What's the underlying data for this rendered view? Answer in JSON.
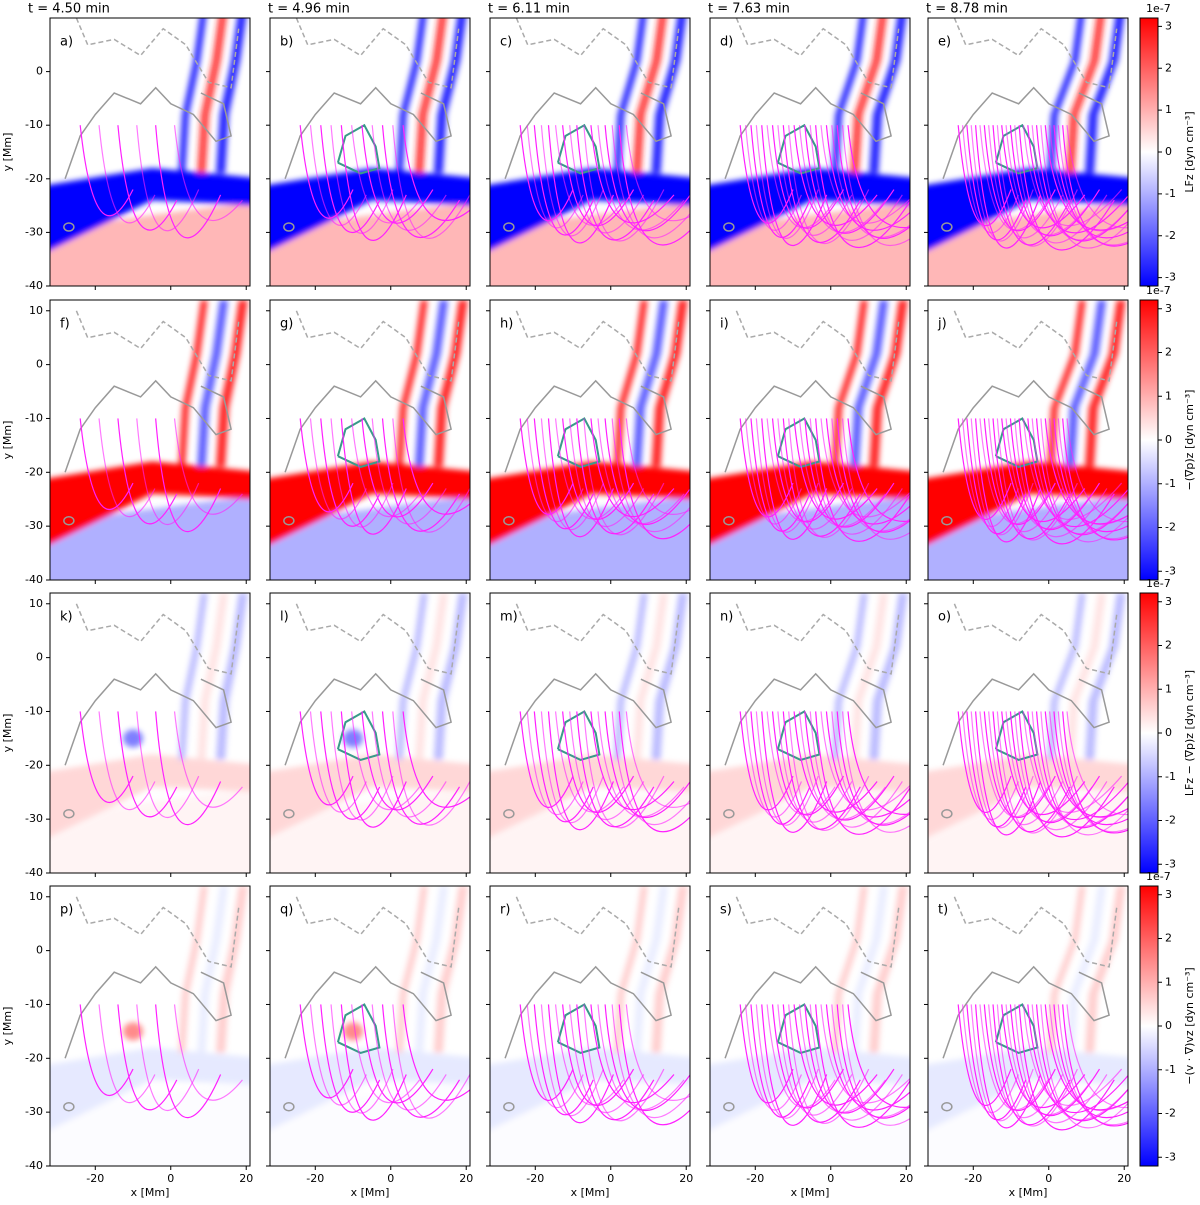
{
  "chart_data": [
    {
      "type": "heatmap",
      "label": "a)",
      "title": "t = 4.50 min",
      "ylabel": "y [Mm]",
      "xlim": [
        -32,
        21
      ],
      "ylim": [
        -40,
        10
      ],
      "xticks": [
        -20,
        0,
        20
      ],
      "yticks": [
        -40,
        -30,
        -20,
        -10,
        0
      ]
    },
    {
      "type": "heatmap",
      "label": "b)",
      "title": "t = 4.96 min",
      "xlim": [
        -32,
        21
      ],
      "ylim": [
        -40,
        10
      ],
      "xticks": [
        -20,
        0,
        20
      ],
      "yticks": [
        -40,
        -30,
        -20,
        -10,
        0
      ]
    },
    {
      "type": "heatmap",
      "label": "c)",
      "title": "t = 6.11 min",
      "xlim": [
        -32,
        21
      ],
      "ylim": [
        -40,
        10
      ],
      "xticks": [
        -20,
        0,
        20
      ],
      "yticks": [
        -40,
        -30,
        -20,
        -10,
        0
      ]
    },
    {
      "type": "heatmap",
      "label": "d)",
      "title": "t = 7.63 min",
      "xlim": [
        -32,
        21
      ],
      "ylim": [
        -40,
        10
      ],
      "xticks": [
        -20,
        0,
        20
      ],
      "yticks": [
        -40,
        -30,
        -20,
        -10,
        0
      ]
    },
    {
      "type": "heatmap",
      "label": "e)",
      "title": "t = 8.78 min",
      "xlim": [
        -32,
        21
      ],
      "ylim": [
        -40,
        10
      ],
      "xticks": [
        -20,
        0,
        20
      ],
      "yticks": [
        -40,
        -30,
        -20,
        -10,
        0
      ]
    },
    {
      "type": "heatmap",
      "label": "f)",
      "ylabel": "y [Mm]",
      "xlim": [
        -32,
        21
      ],
      "ylim": [
        -40,
        12
      ],
      "xticks": [
        -20,
        0,
        20
      ],
      "yticks": [
        -40,
        -30,
        -20,
        -10,
        0,
        10
      ]
    },
    {
      "type": "heatmap",
      "label": "g)",
      "xlim": [
        -32,
        21
      ],
      "ylim": [
        -40,
        12
      ],
      "xticks": [
        -20,
        0,
        20
      ],
      "yticks": [
        -40,
        -30,
        -20,
        -10,
        0,
        10
      ]
    },
    {
      "type": "heatmap",
      "label": "h)",
      "xlim": [
        -32,
        21
      ],
      "ylim": [
        -40,
        12
      ],
      "xticks": [
        -20,
        0,
        20
      ],
      "yticks": [
        -40,
        -30,
        -20,
        -10,
        0,
        10
      ]
    },
    {
      "type": "heatmap",
      "label": "i)",
      "xlim": [
        -32,
        21
      ],
      "ylim": [
        -40,
        12
      ],
      "xticks": [
        -20,
        0,
        20
      ],
      "yticks": [
        -40,
        -30,
        -20,
        -10,
        0,
        10
      ]
    },
    {
      "type": "heatmap",
      "label": "j)",
      "xlim": [
        -32,
        21
      ],
      "ylim": [
        -40,
        12
      ],
      "xticks": [
        -20,
        0,
        20
      ],
      "yticks": [
        -40,
        -30,
        -20,
        -10,
        0,
        10
      ]
    },
    {
      "type": "heatmap",
      "label": "k)",
      "ylabel": "y [Mm]",
      "xlim": [
        -32,
        21
      ],
      "ylim": [
        -40,
        12
      ],
      "xticks": [
        -20,
        0,
        20
      ],
      "yticks": [
        -40,
        -30,
        -20,
        -10,
        0,
        10
      ]
    },
    {
      "type": "heatmap",
      "label": "l)",
      "xlim": [
        -32,
        21
      ],
      "ylim": [
        -40,
        12
      ],
      "xticks": [
        -20,
        0,
        20
      ],
      "yticks": [
        -40,
        -30,
        -20,
        -10,
        0,
        10
      ]
    },
    {
      "type": "heatmap",
      "label": "m)",
      "xlim": [
        -32,
        21
      ],
      "ylim": [
        -40,
        12
      ],
      "xticks": [
        -20,
        0,
        20
      ],
      "yticks": [
        -40,
        -30,
        -20,
        -10,
        0,
        10
      ]
    },
    {
      "type": "heatmap",
      "label": "n)",
      "xlim": [
        -32,
        21
      ],
      "ylim": [
        -40,
        12
      ],
      "xticks": [
        -20,
        0,
        20
      ],
      "yticks": [
        -40,
        -30,
        -20,
        -10,
        0,
        10
      ]
    },
    {
      "type": "heatmap",
      "label": "o)",
      "xlim": [
        -32,
        21
      ],
      "ylim": [
        -40,
        12
      ],
      "xticks": [
        -20,
        0,
        20
      ],
      "yticks": [
        -40,
        -30,
        -20,
        -10,
        0,
        10
      ]
    },
    {
      "type": "heatmap",
      "label": "p)",
      "ylabel": "y [Mm]",
      "xlabel": "x [Mm]",
      "xlim": [
        -32,
        21
      ],
      "ylim": [
        -40,
        12
      ],
      "xticks": [
        -20,
        0,
        20
      ],
      "yticks": [
        -40,
        -30,
        -20,
        -10,
        0,
        10
      ]
    },
    {
      "type": "heatmap",
      "label": "q)",
      "xlabel": "x [Mm]",
      "xlim": [
        -32,
        21
      ],
      "ylim": [
        -40,
        12
      ],
      "xticks": [
        -20,
        0,
        20
      ],
      "yticks": [
        -40,
        -30,
        -20,
        -10,
        0,
        10
      ]
    },
    {
      "type": "heatmap",
      "label": "r)",
      "xlabel": "x [Mm]",
      "xlim": [
        -32,
        21
      ],
      "ylim": [
        -40,
        12
      ],
      "xticks": [
        -20,
        0,
        20
      ],
      "yticks": [
        -40,
        -30,
        -20,
        -10,
        0,
        10
      ]
    },
    {
      "type": "heatmap",
      "label": "s)",
      "xlabel": "x [Mm]",
      "xlim": [
        -32,
        21
      ],
      "ylim": [
        -40,
        12
      ],
      "xticks": [
        -20,
        0,
        20
      ],
      "yticks": [
        -40,
        -30,
        -20,
        -10,
        0,
        10
      ]
    },
    {
      "type": "heatmap",
      "label": "t)",
      "xlabel": "x [Mm]",
      "xlim": [
        -32,
        21
      ],
      "ylim": [
        -40,
        12
      ],
      "xticks": [
        -20,
        0,
        20
      ],
      "yticks": [
        -40,
        -30,
        -20,
        -10,
        0,
        10
      ]
    },
    {
      "type": "colorbar",
      "label": "LFz [dyn cm⁻³]",
      "exponent": "1e-7",
      "clim": [
        -3.2,
        3.2
      ],
      "cticks": [
        -3,
        -2,
        -1,
        0,
        1,
        2,
        3
      ]
    },
    {
      "type": "colorbar",
      "label": "−(∇p)z [dyn cm⁻³]",
      "exponent": "1e-7",
      "clim": [
        -3.2,
        3.2
      ],
      "cticks": [
        -3,
        -2,
        -1,
        0,
        1,
        2,
        3
      ]
    },
    {
      "type": "colorbar",
      "label": "LFz − (∇p)z [dyn cm⁻³]",
      "exponent": "1e-7",
      "clim": [
        -3.2,
        3.2
      ],
      "cticks": [
        -3,
        -2,
        -1,
        0,
        1,
        2,
        3
      ]
    },
    {
      "type": "colorbar",
      "label": "−(v · ∇)vz [dyn cm⁻³]",
      "exponent": "1e-7",
      "clim": [
        -3.2,
        3.2
      ],
      "cticks": [
        -3,
        -2,
        -1,
        0,
        1,
        2,
        3
      ]
    }
  ]
}
